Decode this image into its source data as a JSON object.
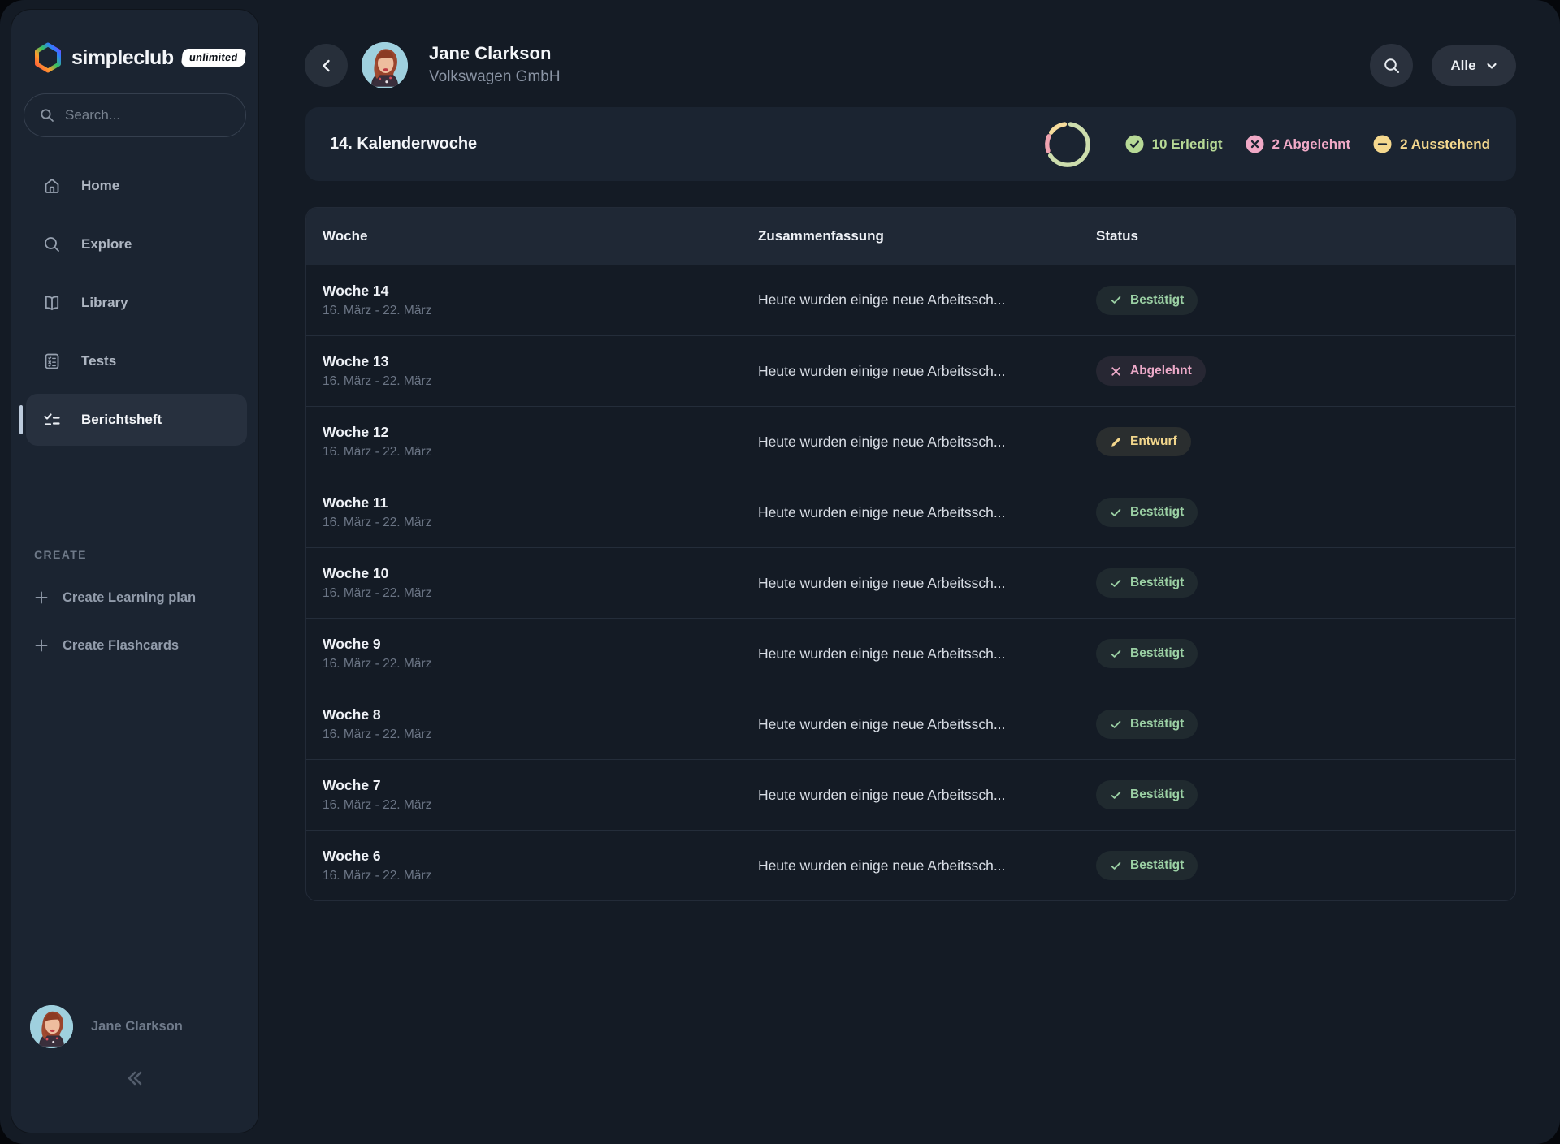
{
  "sidebar": {
    "brand": {
      "name": "simpleclub",
      "badge": "unlimited"
    },
    "search": {
      "placeholder": "Search..."
    },
    "nav": [
      {
        "label": "Home",
        "icon": "home-icon",
        "active": false
      },
      {
        "label": "Explore",
        "icon": "search-icon",
        "active": false
      },
      {
        "label": "Library",
        "icon": "book-icon",
        "active": false
      },
      {
        "label": "Tests",
        "icon": "test-card-icon",
        "active": false
      },
      {
        "label": "Berichtsheft",
        "icon": "checklist-icon",
        "active": true
      }
    ],
    "create_section": {
      "label": "CREATE",
      "items": [
        {
          "label": "Create Learning plan",
          "icon": "plus-icon"
        },
        {
          "label": "Create Flashcards",
          "icon": "plus-icon"
        }
      ]
    },
    "user": {
      "name": "Jane Clarkson"
    }
  },
  "header": {
    "back_icon": "chevron-left-icon",
    "name": "Jane Clarkson",
    "company": "Volkswagen GmbH",
    "search_icon": "search-icon",
    "filter": {
      "label": "Alle",
      "icon": "chevron-down-icon"
    }
  },
  "summary": {
    "title": "14. Kalenderwoche",
    "donut": {
      "segments": [
        {
          "name": "done",
          "value": 10,
          "color": "#cdddad"
        },
        {
          "name": "rejected",
          "value": 2,
          "color": "#f0a3b0"
        },
        {
          "name": "pending",
          "value": 2,
          "color": "#f6dc9c"
        }
      ]
    },
    "stats": [
      {
        "label": "10 Erledigt",
        "icon": "check-circle-icon",
        "color": "#b7d996"
      },
      {
        "label": "2 Abgelehnt",
        "icon": "x-circle-icon",
        "color": "#f0a9c6"
      },
      {
        "label": "2 Ausstehend",
        "icon": "minus-circle-icon",
        "color": "#f5d88e"
      }
    ]
  },
  "table": {
    "columns": [
      "Woche",
      "Zusammenfassung",
      "Status"
    ],
    "status_colors": {
      "confirmed": "#9bd0a4",
      "rejected": "#eca9c8",
      "draft": "#f2d68c"
    },
    "rows": [
      {
        "week": "Woche 14",
        "date": "16. März - 22. März",
        "summary": "Heute wurden einige neue Arbeitssch...",
        "status_type": "confirmed",
        "status_label": "Bestätigt",
        "status_icon": "check-icon"
      },
      {
        "week": "Woche 13",
        "date": "16. März - 22. März",
        "summary": "Heute wurden einige neue Arbeitssch...",
        "status_type": "rejected",
        "status_label": "Abgelehnt",
        "status_icon": "x-icon"
      },
      {
        "week": "Woche 12",
        "date": "16. März - 22. März",
        "summary": "Heute wurden einige neue Arbeitssch...",
        "status_type": "draft",
        "status_label": "Entwurf",
        "status_icon": "pencil-icon"
      },
      {
        "week": "Woche 11",
        "date": "16. März - 22. März",
        "summary": "Heute wurden einige neue Arbeitssch...",
        "status_type": "confirmed",
        "status_label": "Bestätigt",
        "status_icon": "check-icon"
      },
      {
        "week": "Woche 10",
        "date": "16. März - 22. März",
        "summary": "Heute wurden einige neue Arbeitssch...",
        "status_type": "confirmed",
        "status_label": "Bestätigt",
        "status_icon": "check-icon"
      },
      {
        "week": "Woche 9",
        "date": "16. März - 22. März",
        "summary": "Heute wurden einige neue Arbeitssch...",
        "status_type": "confirmed",
        "status_label": "Bestätigt",
        "status_icon": "check-icon"
      },
      {
        "week": "Woche 8",
        "date": "16. März - 22. März",
        "summary": "Heute wurden einige neue Arbeitssch...",
        "status_type": "confirmed",
        "status_label": "Bestätigt",
        "status_icon": "check-icon"
      },
      {
        "week": "Woche 7",
        "date": "16. März - 22. März",
        "summary": "Heute wurden einige neue Arbeitssch...",
        "status_type": "confirmed",
        "status_label": "Bestätigt",
        "status_icon": "check-icon"
      },
      {
        "week": "Woche 6",
        "date": "16. März - 22. März",
        "summary": "Heute wurden einige neue Arbeitssch...",
        "status_type": "confirmed",
        "status_label": "Bestätigt",
        "status_icon": "check-icon"
      }
    ]
  }
}
